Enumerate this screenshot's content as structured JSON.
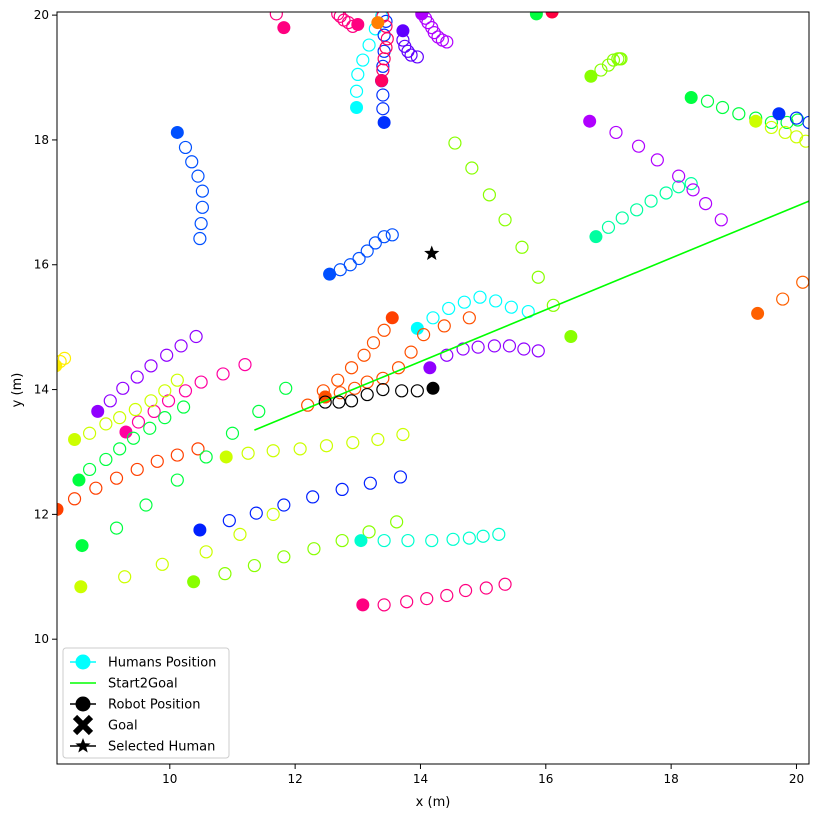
{
  "chart_data": {
    "type": "scatter",
    "xlabel": "x (m)",
    "ylabel": "y (m)",
    "xlim": [
      8.2,
      20.2
    ],
    "ylim": [
      8.0,
      20.05
    ],
    "xticks": [
      10,
      12,
      14,
      16,
      18,
      20
    ],
    "yticks": [
      10,
      12,
      14,
      16,
      18,
      20
    ],
    "xtick_labels": [
      "10",
      "12",
      "14",
      "16",
      "18",
      "20"
    ],
    "ytick_labels": [
      "10",
      "12",
      "14",
      "16",
      "18",
      "20"
    ],
    "grid": false,
    "legend_position": "lower-left",
    "legend": [
      {
        "label": "Humans Position",
        "symbol": "filled-circle-line",
        "color": "#00ffff"
      },
      {
        "label": "Start2Goal",
        "symbol": "line",
        "color": "#00ff00"
      },
      {
        "label": "Robot Position",
        "symbol": "filled-circle-line",
        "color": "#000000"
      },
      {
        "label": "Goal",
        "symbol": "x-marker",
        "color": "#000000"
      },
      {
        "label": "Selected Human",
        "symbol": "star",
        "color": "#000000"
      }
    ],
    "start2goal": {
      "x": [
        11.35,
        20.2
      ],
      "y": [
        13.35,
        17.02
      ],
      "color": "#00ff00"
    },
    "selected_human": {
      "x": 14.18,
      "y": 16.18
    },
    "robot": {
      "color": "#000000",
      "current": [
        14.2,
        14.02
      ],
      "history": [
        [
          13.95,
          13.98
        ],
        [
          13.7,
          13.98
        ],
        [
          13.4,
          14.0
        ],
        [
          13.15,
          13.92
        ],
        [
          12.9,
          13.82
        ],
        [
          12.7,
          13.8
        ],
        [
          12.48,
          13.8
        ]
      ]
    },
    "humans": [
      {
        "color": "#00ffff",
        "current": [
          12.98,
          18.52
        ],
        "history": [
          [
            12.98,
            18.78
          ],
          [
            13.0,
            19.05
          ],
          [
            13.08,
            19.28
          ],
          [
            13.18,
            19.52
          ],
          [
            13.28,
            19.78
          ],
          [
            13.38,
            19.98
          ]
        ]
      },
      {
        "color": "#0030ff",
        "current": [
          13.42,
          18.28
        ],
        "history": [
          [
            13.4,
            18.5
          ],
          [
            13.4,
            18.72
          ],
          [
            13.38,
            18.95
          ],
          [
            13.4,
            19.18
          ],
          [
            13.42,
            19.42
          ],
          [
            13.42,
            19.68
          ],
          [
            13.45,
            19.9
          ]
        ]
      },
      {
        "color": "#ff0060",
        "current": [
          13.38,
          18.95
        ],
        "history": [
          [
            13.4,
            19.12
          ],
          [
            13.42,
            19.3
          ],
          [
            13.45,
            19.48
          ],
          [
            13.47,
            19.62
          ],
          [
            13.45,
            19.82
          ],
          [
            13.4,
            19.98
          ]
        ]
      },
      {
        "color": "#ff8000",
        "current": [
          13.32,
          19.88
        ],
        "history": []
      },
      {
        "color": "#ff0080",
        "current": [
          13.0,
          19.85
        ],
        "history": [
          [
            12.92,
            19.82
          ],
          [
            12.85,
            19.88
          ],
          [
            12.78,
            19.92
          ],
          [
            12.72,
            19.98
          ],
          [
            12.68,
            20.02
          ]
        ]
      },
      {
        "color": "#6000ff",
        "current": [
          13.72,
          19.75
        ],
        "history": [
          [
            13.72,
            19.6
          ],
          [
            13.75,
            19.5
          ],
          [
            13.8,
            19.42
          ],
          [
            13.85,
            19.36
          ],
          [
            13.95,
            19.33
          ]
        ]
      },
      {
        "color": "#b000ff",
        "current": [
          14.02,
          20.02
        ],
        "history": [
          [
            14.08,
            19.95
          ],
          [
            14.12,
            19.88
          ],
          [
            14.18,
            19.8
          ],
          [
            14.22,
            19.72
          ],
          [
            14.28,
            19.65
          ],
          [
            14.35,
            19.6
          ],
          [
            14.42,
            19.57
          ]
        ]
      },
      {
        "color": "#ff0080",
        "current": [
          11.82,
          19.8
        ],
        "history": [
          [
            11.7,
            20.02
          ]
        ]
      },
      {
        "color": "#0050ff",
        "current": [
          10.12,
          18.12
        ],
        "history": [
          [
            10.25,
            17.88
          ],
          [
            10.35,
            17.65
          ],
          [
            10.45,
            17.42
          ],
          [
            10.52,
            17.18
          ],
          [
            10.52,
            16.92
          ],
          [
            10.5,
            16.66
          ],
          [
            10.48,
            16.42
          ]
        ]
      },
      {
        "color": "#0050ff",
        "current": [
          12.55,
          15.85
        ],
        "history": [
          [
            12.72,
            15.92
          ],
          [
            12.88,
            16.0
          ],
          [
            13.02,
            16.1
          ],
          [
            13.15,
            16.22
          ],
          [
            13.28,
            16.35
          ],
          [
            13.42,
            16.45
          ],
          [
            13.55,
            16.48
          ]
        ]
      },
      {
        "color": "#00ffff",
        "current": [
          13.95,
          14.98
        ],
        "history": [
          [
            14.2,
            15.15
          ],
          [
            14.45,
            15.3
          ],
          [
            14.7,
            15.4
          ],
          [
            14.95,
            15.48
          ],
          [
            15.2,
            15.42
          ],
          [
            15.45,
            15.32
          ],
          [
            15.72,
            15.25
          ]
        ]
      },
      {
        "color": "#ff4000",
        "current": [
          13.55,
          15.15
        ],
        "history": []
      },
      {
        "color": "#ff5000",
        "current": [
          12.48,
          13.88
        ],
        "history": [
          [
            12.2,
            13.75
          ],
          [
            12.45,
            13.98
          ],
          [
            12.68,
            14.15
          ],
          [
            12.9,
            14.35
          ],
          [
            13.1,
            14.55
          ],
          [
            13.25,
            14.75
          ],
          [
            13.42,
            14.95
          ]
        ]
      },
      {
        "color": "#ff5000",
        "current": [
          12.48,
          13.88
        ],
        "history": [
          [
            12.72,
            13.95
          ],
          [
            12.95,
            14.02
          ],
          [
            13.15,
            14.12
          ],
          [
            13.4,
            14.18
          ],
          [
            13.65,
            14.35
          ],
          [
            13.85,
            14.6
          ],
          [
            14.05,
            14.88
          ],
          [
            14.38,
            15.02
          ],
          [
            14.78,
            15.15
          ]
        ]
      },
      {
        "color": "#9000ff",
        "current": [
          14.15,
          14.35
        ],
        "history": [
          [
            14.42,
            14.55
          ],
          [
            14.68,
            14.65
          ],
          [
            14.92,
            14.68
          ],
          [
            15.18,
            14.7
          ],
          [
            15.42,
            14.7
          ],
          [
            15.65,
            14.65
          ],
          [
            15.88,
            14.62
          ]
        ]
      },
      {
        "color": "#00ffa0",
        "current": [
          16.8,
          16.45
        ],
        "history": [
          [
            17.0,
            16.6
          ],
          [
            17.22,
            16.75
          ],
          [
            17.45,
            16.88
          ],
          [
            17.68,
            17.02
          ],
          [
            17.92,
            17.15
          ],
          [
            18.12,
            17.25
          ],
          [
            18.32,
            17.3
          ]
        ]
      },
      {
        "color": "#b000ff",
        "current": [
          16.7,
          18.3
        ],
        "history": [
          [
            17.12,
            18.12
          ],
          [
            17.48,
            17.9
          ],
          [
            17.78,
            17.68
          ],
          [
            18.12,
            17.42
          ],
          [
            18.35,
            17.2
          ],
          [
            18.55,
            16.98
          ],
          [
            18.8,
            16.72
          ]
        ]
      },
      {
        "color": "#88ff00",
        "current": [
          16.72,
          19.02
        ],
        "history": [
          [
            16.88,
            19.12
          ],
          [
            17.0,
            19.2
          ],
          [
            17.08,
            19.28
          ],
          [
            17.15,
            19.3
          ],
          [
            17.18,
            19.3
          ],
          [
            17.2,
            19.3
          ]
        ]
      },
      {
        "color": "#00ff40",
        "current": [
          18.32,
          18.68
        ],
        "history": [
          [
            18.58,
            18.62
          ],
          [
            18.82,
            18.52
          ],
          [
            19.08,
            18.42
          ],
          [
            19.35,
            18.35
          ],
          [
            19.6,
            18.28
          ],
          [
            19.85,
            18.28
          ],
          [
            20.02,
            18.32
          ]
        ]
      },
      {
        "color": "#ccff00",
        "current": [
          19.35,
          18.3
        ],
        "history": [
          [
            19.6,
            18.2
          ],
          [
            19.82,
            18.12
          ],
          [
            20.0,
            18.05
          ],
          [
            20.15,
            17.98
          ]
        ]
      },
      {
        "color": "#0030ff",
        "current": [
          19.72,
          18.42
        ],
        "history": [
          [
            20.0,
            18.35
          ],
          [
            20.2,
            18.28
          ]
        ]
      },
      {
        "color": "#00ff40",
        "current": [
          15.85,
          20.02
        ],
        "history": []
      },
      {
        "color": "#ff0040",
        "current": [
          16.1,
          20.05
        ],
        "history": []
      },
      {
        "color": "#88ff00",
        "current": [
          16.4,
          14.85
        ],
        "history": [
          [
            16.12,
            15.35
          ],
          [
            15.88,
            15.8
          ],
          [
            15.62,
            16.28
          ],
          [
            15.35,
            16.72
          ],
          [
            15.1,
            17.12
          ],
          [
            14.82,
            17.55
          ],
          [
            14.55,
            17.95
          ]
        ]
      },
      {
        "color": "#ff6000",
        "current": [
          19.38,
          15.22
        ],
        "history": [
          [
            19.78,
            15.45
          ],
          [
            20.1,
            15.72
          ]
        ]
      },
      {
        "color": "#ff00a0",
        "current": [
          9.3,
          13.32
        ],
        "history": [
          [
            9.5,
            13.48
          ],
          [
            9.75,
            13.65
          ],
          [
            9.98,
            13.82
          ],
          [
            10.25,
            13.98
          ],
          [
            10.5,
            14.12
          ],
          [
            10.85,
            14.25
          ],
          [
            11.2,
            14.4
          ]
        ]
      },
      {
        "color": "#9000ff",
        "current": [
          8.85,
          13.65
        ],
        "history": [
          [
            9.05,
            13.82
          ],
          [
            9.25,
            14.02
          ],
          [
            9.48,
            14.2
          ],
          [
            9.7,
            14.38
          ],
          [
            9.95,
            14.55
          ],
          [
            10.18,
            14.7
          ],
          [
            10.42,
            14.85
          ]
        ]
      },
      {
        "color": "#ccff00",
        "current": [
          8.48,
          13.2
        ],
        "history": [
          [
            8.72,
            13.3
          ],
          [
            8.98,
            13.45
          ],
          [
            9.2,
            13.55
          ],
          [
            9.45,
            13.68
          ],
          [
            9.7,
            13.82
          ],
          [
            9.92,
            13.98
          ],
          [
            10.12,
            14.15
          ]
        ]
      },
      {
        "color": "#00ff40",
        "current": [
          8.55,
          12.55
        ],
        "history": [
          [
            8.72,
            12.72
          ],
          [
            8.98,
            12.88
          ],
          [
            9.2,
            13.05
          ],
          [
            9.42,
            13.22
          ],
          [
            9.68,
            13.38
          ],
          [
            9.92,
            13.55
          ],
          [
            10.22,
            13.72
          ]
        ]
      },
      {
        "color": "#ff4000",
        "current": [
          8.2,
          12.08
        ],
        "history": [
          [
            8.48,
            12.25
          ],
          [
            8.82,
            12.42
          ],
          [
            9.15,
            12.58
          ],
          [
            9.48,
            12.72
          ],
          [
            9.8,
            12.85
          ],
          [
            10.12,
            12.95
          ],
          [
            10.45,
            13.05
          ]
        ]
      },
      {
        "color": "#ccff00",
        "current": [
          10.9,
          12.92
        ],
        "history": [
          [
            11.25,
            12.98
          ],
          [
            11.65,
            13.02
          ],
          [
            12.08,
            13.05
          ],
          [
            12.5,
            13.1
          ],
          [
            12.92,
            13.15
          ],
          [
            13.32,
            13.2
          ],
          [
            13.72,
            13.28
          ]
        ]
      },
      {
        "color": "#00ff40",
        "current": [
          8.6,
          11.5
        ],
        "history": [
          [
            9.15,
            11.78
          ],
          [
            9.62,
            12.15
          ],
          [
            10.12,
            12.55
          ],
          [
            10.58,
            12.92
          ],
          [
            11.0,
            13.3
          ],
          [
            11.42,
            13.65
          ],
          [
            11.85,
            14.02
          ]
        ]
      },
      {
        "color": "#0020ff",
        "current": [
          10.48,
          11.75
        ],
        "history": [
          [
            10.95,
            11.9
          ],
          [
            11.38,
            12.02
          ],
          [
            11.82,
            12.15
          ],
          [
            12.28,
            12.28
          ],
          [
            12.75,
            12.4
          ],
          [
            13.2,
            12.5
          ],
          [
            13.68,
            12.6
          ]
        ]
      },
      {
        "color": "#88ff00",
        "current": [
          10.38,
          10.92
        ],
        "history": [
          [
            10.88,
            11.05
          ],
          [
            11.35,
            11.18
          ],
          [
            11.82,
            11.32
          ],
          [
            12.3,
            11.45
          ],
          [
            12.75,
            11.58
          ],
          [
            13.18,
            11.72
          ],
          [
            13.62,
            11.88
          ]
        ]
      },
      {
        "color": "#ccff00",
        "current": [
          8.58,
          10.84
        ],
        "history": [
          [
            9.28,
            11.0
          ],
          [
            9.88,
            11.2
          ],
          [
            10.58,
            11.4
          ],
          [
            11.12,
            11.68
          ],
          [
            11.65,
            12.0
          ]
        ]
      },
      {
        "color": "#00ffd0",
        "current": [
          13.05,
          11.58
        ],
        "history": [
          [
            13.42,
            11.58
          ],
          [
            13.8,
            11.58
          ],
          [
            14.18,
            11.58
          ],
          [
            14.52,
            11.6
          ],
          [
            14.78,
            11.62
          ],
          [
            15.0,
            11.65
          ],
          [
            15.25,
            11.68
          ]
        ]
      },
      {
        "color": "#ff0080",
        "current": [
          13.08,
          10.55
        ],
        "history": [
          [
            13.42,
            10.55
          ],
          [
            13.78,
            10.6
          ],
          [
            14.1,
            10.65
          ],
          [
            14.42,
            10.7
          ],
          [
            14.72,
            10.78
          ],
          [
            15.05,
            10.82
          ],
          [
            15.35,
            10.88
          ]
        ]
      },
      {
        "color": "#ffee00",
        "current": [
          8.18,
          14.38
        ],
        "history": [
          [
            8.25,
            14.45
          ],
          [
            8.32,
            14.5
          ]
        ]
      }
    ]
  }
}
